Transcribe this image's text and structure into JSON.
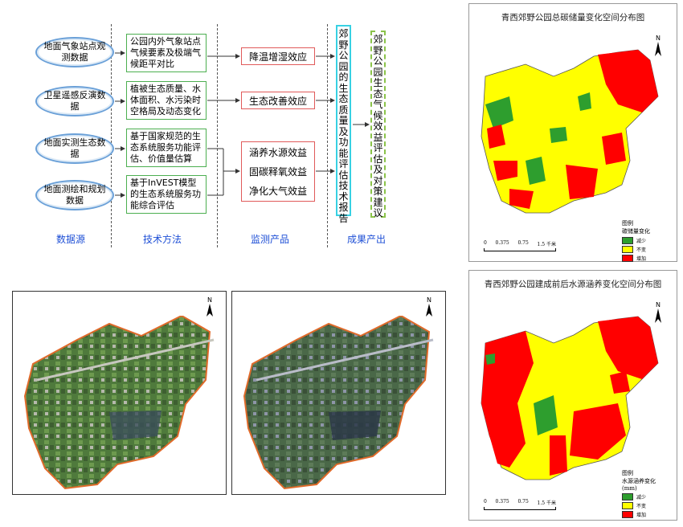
{
  "flow": {
    "sources": [
      "地面气象站点观测数据",
      "卫星遥感反演数据",
      "地面实测生态数据",
      "地面测绘和规划数据"
    ],
    "methods": [
      "公园内外气象站点气候要素及极端气候距平对比",
      "植被生态质量、水体面积、水污染时空格局及动态变化",
      "基于国家规范的生态系统服务功能评估、价值量估算",
      "基于InVEST模型的生态系统服务功能综合评估"
    ],
    "products": [
      "降温增湿效应",
      "生态改善效应",
      "涵养水源效益",
      "固碳释氧效益",
      "净化大气效益"
    ],
    "report": "郊野公园的生态质量及功能评估技术报告",
    "final": "郊野公园生态气候效益评估及对策建议",
    "columns": [
      "数据源",
      "技术方法",
      "监测产品",
      "成果产出"
    ]
  },
  "map_carbon": {
    "title": "青西郊野公园总碳储量变化空间分布图",
    "north": "N",
    "legend_header": "图例",
    "legend_title": "碳储量变化",
    "legend_items": [
      "减少",
      "不变",
      "增加"
    ],
    "scale_labels": [
      "0",
      "0.375",
      "0.75",
      "1.5 千米"
    ]
  },
  "map_water": {
    "title": "青西郊野公园建成前后水源涵养变化空间分布图",
    "north": "N",
    "legend_header": "图例",
    "legend_title": "水源涵养变化",
    "legend_sub": "(mm)",
    "legend_items": [
      "减少",
      "不变",
      "增加"
    ],
    "scale_labels": [
      "0",
      "0.375",
      "0.75",
      "1.5 千米"
    ]
  },
  "photos": {
    "north_left": "N",
    "north_right": "N"
  },
  "colors": {
    "decrease": "#2e9e2e",
    "unchanged": "#ffff00",
    "increase": "#ff0000",
    "accent_blue": "#1e4fd6"
  }
}
